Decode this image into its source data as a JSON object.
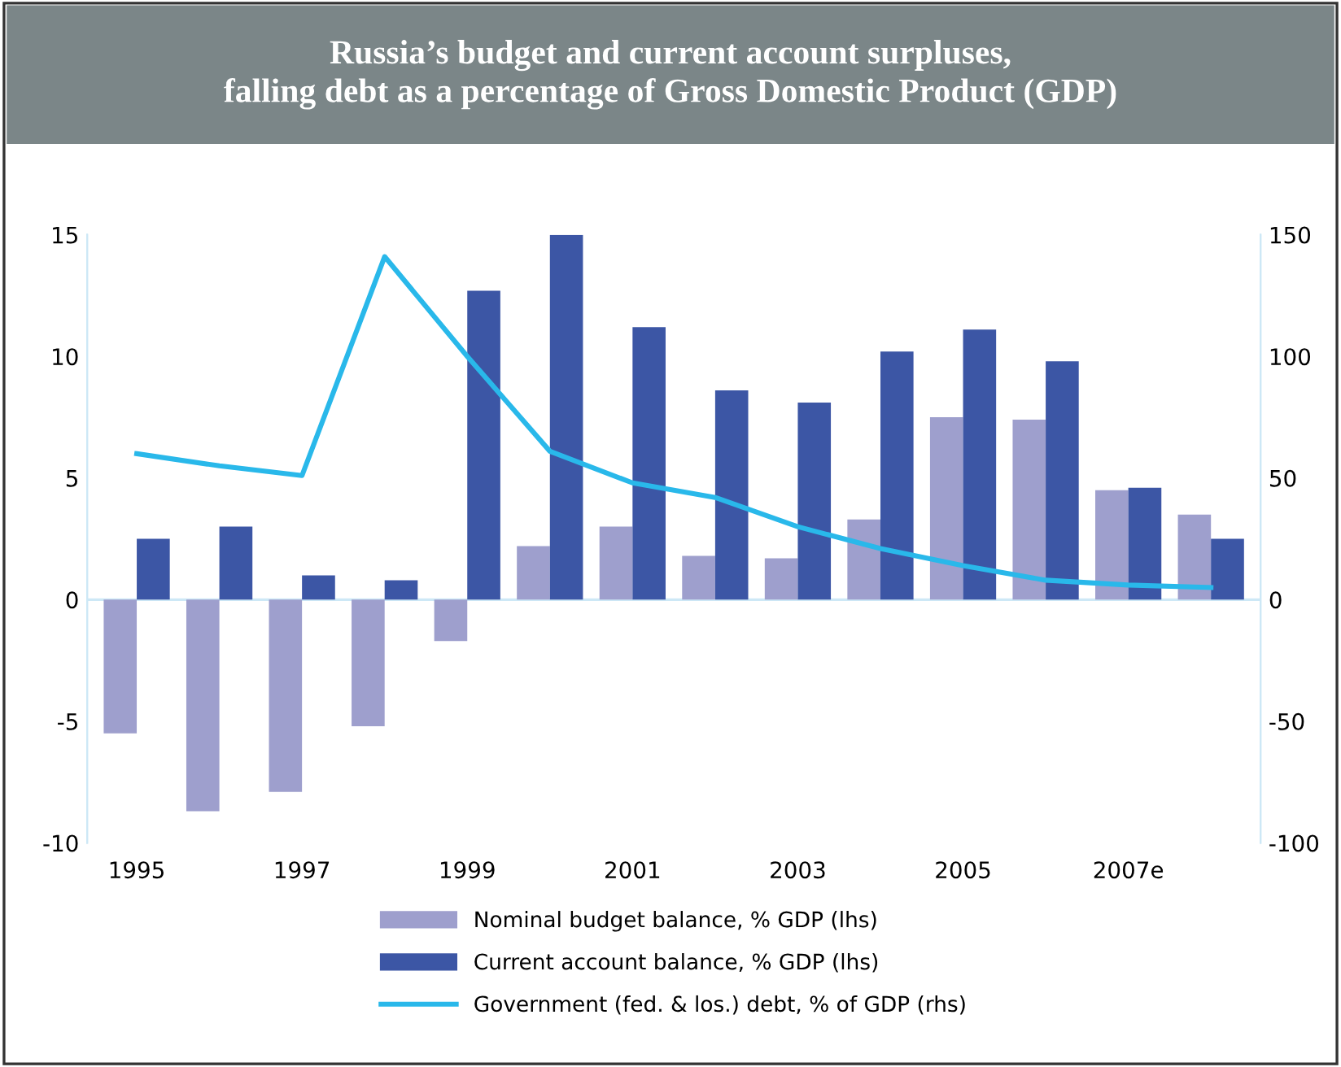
{
  "chart_data": {
    "type": "bar",
    "title": "Russia’s budget and current account surpluses,\nfalling debt as a percentage of Gross Domestic Product (GDP)",
    "categories": [
      "1995",
      null,
      "1997",
      null,
      "1999",
      null,
      "2001",
      null,
      "2003",
      null,
      "2005",
      null,
      "2007e",
      null
    ],
    "series": [
      {
        "name": "Nominal budget balance, % GDP (lhs)",
        "color": "#9e9fcd",
        "values": [
          -5.5,
          -8.7,
          -7.9,
          -5.2,
          -1.7,
          2.2,
          3.0,
          1.8,
          1.7,
          3.3,
          7.5,
          7.4,
          4.5,
          3.5
        ]
      },
      {
        "name": "Current account balance, % GDP (lhs)",
        "color": "#3c56a5",
        "values": [
          2.5,
          3.0,
          1.0,
          0.8,
          12.7,
          15.0,
          11.2,
          8.6,
          8.1,
          10.2,
          11.1,
          9.8,
          4.6,
          2.5
        ]
      },
      {
        "name": "Government (fed. & los.) debt, % of GDP (rhs)",
        "type": "line",
        "axis": "y2",
        "color": "#29b8ea",
        "values": [
          60,
          55,
          51,
          141,
          100,
          61,
          48,
          42,
          30,
          21,
          14,
          8,
          6,
          5
        ]
      }
    ],
    "ylim": [
      -10,
      15
    ],
    "yticks": [
      -10,
      -5,
      0,
      5,
      10,
      15
    ],
    "y2lim": [
      -100,
      150
    ],
    "y2ticks": [
      -100,
      -50,
      0,
      50,
      100,
      150
    ],
    "ref_lines": [
      {
        "axis": "y",
        "value": 0,
        "color": "#cde8f6",
        "line_style": "solid"
      }
    ],
    "grid": false,
    "legend": "bottom",
    "marker": "none"
  }
}
